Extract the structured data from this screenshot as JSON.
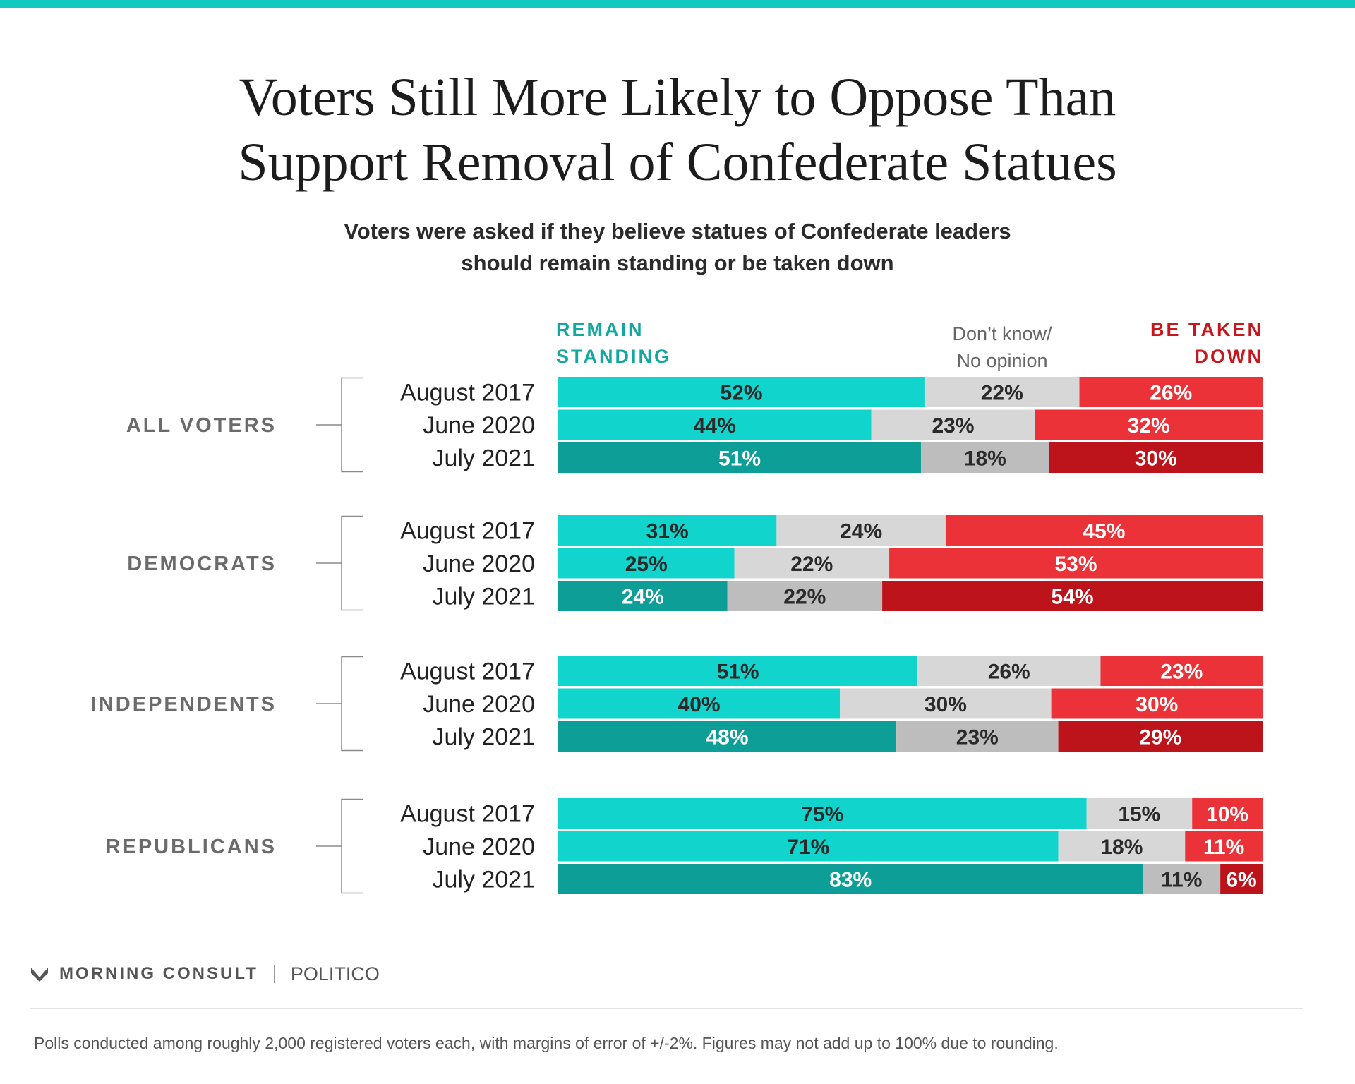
{
  "title": [
    "Voters Still More Likely to Oppose Than",
    "Support Removal of Confederate Statues"
  ],
  "subtitle": [
    "Voters were asked if they believe statues of Confederate leaders",
    "should remain standing or be taken down"
  ],
  "legend": {
    "remain": [
      "REMAIN",
      "STANDING"
    ],
    "dont_know": [
      "Don’t know/",
      "No opinion"
    ],
    "taken_down": [
      "BE TAKEN",
      "DOWN"
    ]
  },
  "colors": {
    "remain": "#11d4cd",
    "remain_latest": "#0d9e98",
    "dont_know": "#d7d7d7",
    "dont_know_latest": "#bdbdbd",
    "taken_down": "#ea3238",
    "taken_down_latest": "#bd141b",
    "accent_rule": "#11c9c0"
  },
  "chart_data": {
    "type": "bar",
    "orientation": "horizontal",
    "stacked": true,
    "series_order": [
      "Remain standing",
      "Don’t know/No opinion",
      "Be taken down"
    ],
    "groups": [
      {
        "name": "ALL VOTERS",
        "rows": [
          {
            "label": "August 2017",
            "values": [
              52,
              22,
              26
            ]
          },
          {
            "label": "June 2020",
            "values": [
              44,
              23,
              32
            ]
          },
          {
            "label": "July 2021",
            "values": [
              51,
              18,
              30
            ]
          }
        ]
      },
      {
        "name": "DEMOCRATS",
        "rows": [
          {
            "label": "August 2017",
            "values": [
              31,
              24,
              45
            ]
          },
          {
            "label": "June 2020",
            "values": [
              25,
              22,
              53
            ]
          },
          {
            "label": "July 2021",
            "values": [
              24,
              22,
              54
            ]
          }
        ]
      },
      {
        "name": "INDEPENDENTS",
        "rows": [
          {
            "label": "August 2017",
            "values": [
              51,
              26,
              23
            ]
          },
          {
            "label": "June 2020",
            "values": [
              40,
              30,
              30
            ]
          },
          {
            "label": "July 2021",
            "values": [
              48,
              23,
              29
            ]
          }
        ]
      },
      {
        "name": "REPUBLICANS",
        "rows": [
          {
            "label": "August 2017",
            "values": [
              75,
              15,
              10
            ]
          },
          {
            "label": "June 2020",
            "values": [
              71,
              18,
              11
            ]
          },
          {
            "label": "July 2021",
            "values": [
              83,
              11,
              6
            ]
          }
        ]
      }
    ]
  },
  "brand": {
    "morning_consult": "MORNING CONSULT",
    "politico": "POLITICO"
  },
  "footnote": "Polls conducted among roughly 2,000 registered voters each, with margins of error of +/-2%. Figures may not add up to 100% due to rounding."
}
